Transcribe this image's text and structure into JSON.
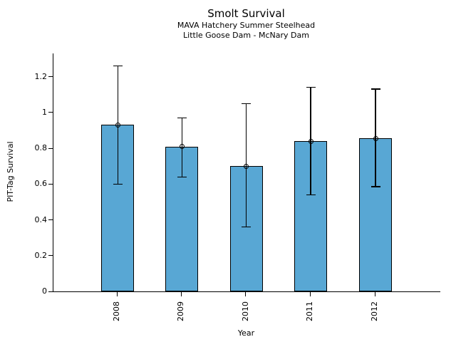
{
  "header": {
    "title": "Smolt Survival",
    "subtitle1": "MAVA Hatchery Summer Steelhead",
    "subtitle2": "Little Goose Dam - McNary Dam"
  },
  "chart_data": {
    "type": "bar",
    "title": "Smolt Survival",
    "subtitles": [
      "MAVA Hatchery Summer Steelhead",
      "Little Goose Dam - McNary Dam"
    ],
    "categories": [
      "2008",
      "2009",
      "2010",
      "2011",
      "2012"
    ],
    "series": [
      {
        "name": "PIT-Tag Survival",
        "values": [
          0.93,
          0.81,
          0.7,
          0.84,
          0.855
        ],
        "error_low": [
          0.6,
          0.64,
          0.36,
          0.54,
          0.585
        ],
        "error_high": [
          1.26,
          0.97,
          1.05,
          1.14,
          1.13
        ]
      }
    ],
    "xlabel": "Year",
    "ylabel": "PIT-Tag Survival",
    "ylim": [
      0,
      1.33
    ],
    "yticks": [
      0,
      0.2,
      0.4,
      0.6,
      0.8,
      1,
      1.2
    ],
    "ytick_labels": [
      "0",
      "0.2",
      "0.4",
      "0.6",
      "0.8",
      "1",
      "1.2"
    ],
    "grid": false,
    "legend": null,
    "marker": "open-circle",
    "error_bars": "capped"
  },
  "colors": {
    "bar_fill": "#58a7d4",
    "bar_edge": "#000000",
    "axis": "#000000",
    "text": "#000000",
    "background": "#ffffff"
  }
}
